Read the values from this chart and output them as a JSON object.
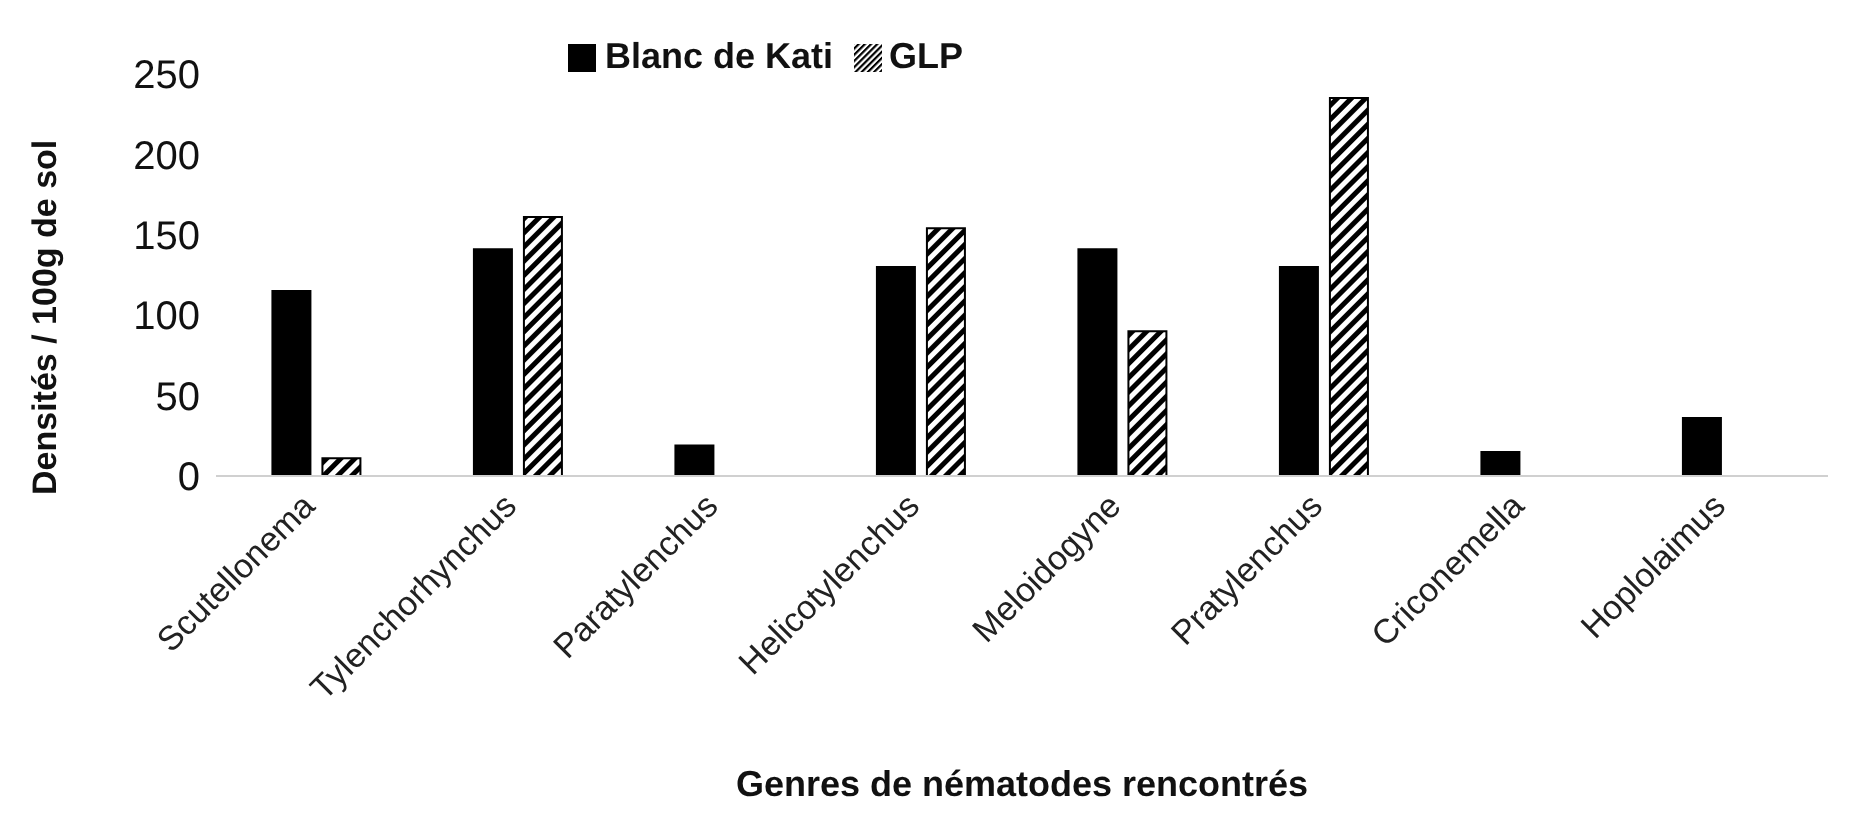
{
  "chart_data": {
    "type": "bar",
    "xlabel": "Genres de nématodes rencontrés",
    "ylabel": "Densités / 100g de sol",
    "categories": [
      "Scutellonema",
      "Tylenchorhynchus",
      "Paratylenchus",
      "Helicotylenchus",
      "Meloidogyne",
      "Pratylenchus",
      "Criconemella",
      "Hoplolaimus"
    ],
    "series": [
      {
        "name": "Blanc de Kati",
        "color": "#000000",
        "values": [
          115,
          141,
          19,
          130,
          141,
          130,
          15,
          36
        ]
      },
      {
        "name": "GLP",
        "color": "#000000",
        "values": [
          11,
          161,
          null,
          154,
          90,
          235,
          null,
          null
        ]
      }
    ],
    "ylim": [
      0,
      250
    ],
    "yticks": [
      0,
      50,
      100,
      150,
      200,
      250
    ],
    "grid": false,
    "legend": "top"
  }
}
